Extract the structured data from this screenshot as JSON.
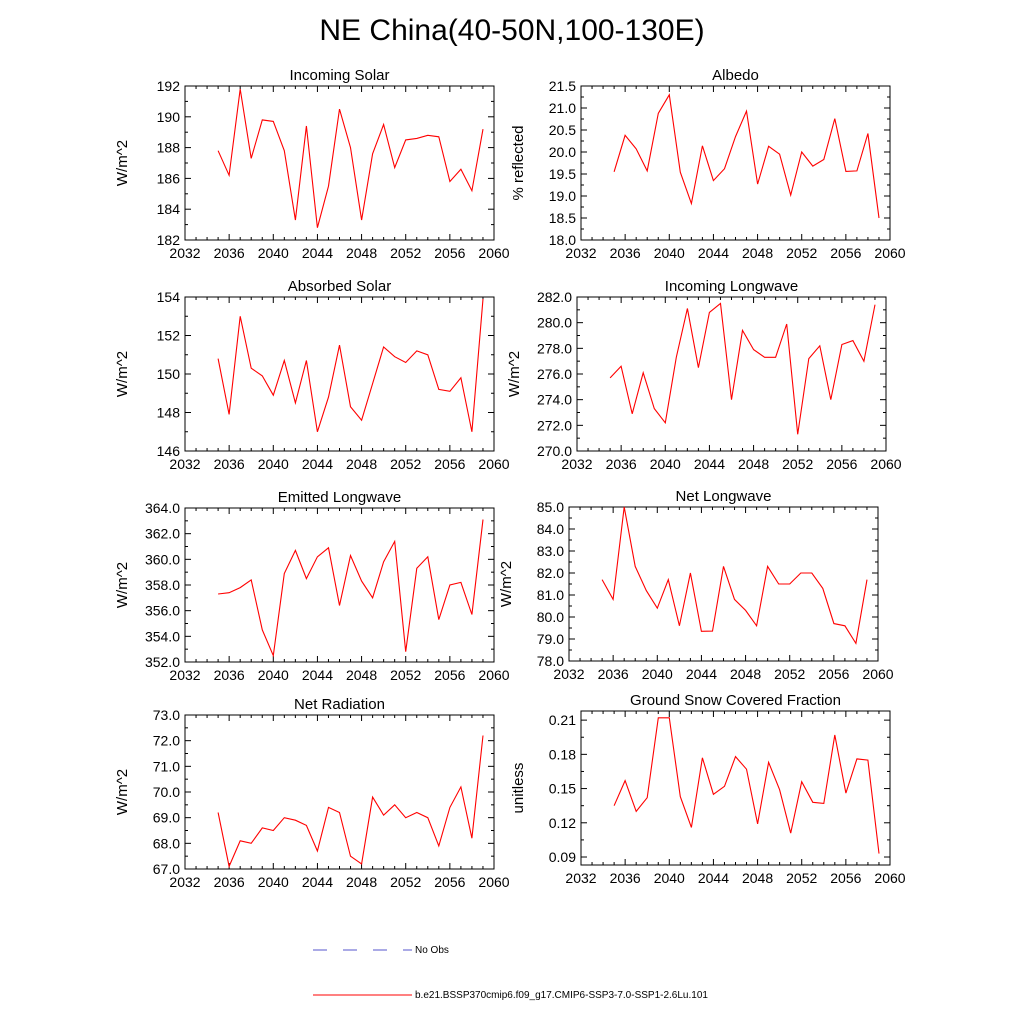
{
  "title": "NE China(40-50N,100-130E)",
  "colors": {
    "model_line": "#ff0000",
    "obs_line": "#5555cc",
    "axis": "#000000"
  },
  "legend": {
    "obs_label": "No Obs",
    "model_label": "b.e21.BSSP370cmip6.f09_g17.CMIP6-SSP3-7.0-SSP1-2.6Lu.101"
  },
  "chart_data": [
    {
      "type": "line",
      "title": "Incoming Solar",
      "ylabel": "W/m^2",
      "xlim": [
        2032,
        2060
      ],
      "xticks": [
        2032,
        2036,
        2040,
        2044,
        2048,
        2052,
        2056,
        2060
      ],
      "ylim": [
        182,
        192
      ],
      "yticks": [
        "182",
        "184",
        "186",
        "188",
        "190",
        "192"
      ],
      "x": [
        2035,
        2036,
        2037,
        2038,
        2039,
        2040,
        2041,
        2042,
        2043,
        2044,
        2045,
        2046,
        2047,
        2048,
        2049,
        2050,
        2051,
        2052,
        2053,
        2054,
        2055,
        2056,
        2057,
        2058,
        2059
      ],
      "values": [
        187.8,
        186.2,
        191.8,
        187.3,
        189.8,
        189.7,
        187.8,
        183.3,
        189.4,
        182.8,
        185.5,
        190.5,
        188.0,
        183.3,
        187.6,
        189.5,
        186.7,
        188.5,
        188.6,
        188.8,
        188.7,
        185.8,
        186.6,
        185.2,
        189.2
      ]
    },
    {
      "type": "line",
      "title": "Albedo",
      "ylabel": "% reflected",
      "xlim": [
        2032,
        2060
      ],
      "xticks": [
        2032,
        2036,
        2040,
        2044,
        2048,
        2052,
        2056,
        2060
      ],
      "ylim": [
        18.0,
        21.5
      ],
      "yticks": [
        "18.0",
        "18.5",
        "19.0",
        "19.5",
        "20.0",
        "20.5",
        "21.0",
        "21.5"
      ],
      "x": [
        2035,
        2036,
        2037,
        2038,
        2039,
        2040,
        2041,
        2042,
        2043,
        2044,
        2045,
        2046,
        2047,
        2048,
        2049,
        2050,
        2051,
        2052,
        2053,
        2054,
        2055,
        2056,
        2057,
        2058,
        2059
      ],
      "values": [
        19.55,
        20.38,
        20.07,
        19.57,
        20.88,
        21.3,
        19.54,
        18.83,
        20.14,
        19.35,
        19.62,
        20.35,
        20.93,
        19.27,
        20.13,
        19.95,
        19.02,
        20.0,
        19.68,
        19.83,
        20.76,
        19.56,
        19.57,
        20.42,
        18.5
      ]
    },
    {
      "type": "line",
      "title": "Absorbed Solar",
      "ylabel": "W/m^2",
      "xlim": [
        2032,
        2060
      ],
      "xticks": [
        2032,
        2036,
        2040,
        2044,
        2048,
        2052,
        2056,
        2060
      ],
      "ylim": [
        146,
        154
      ],
      "yticks": [
        "146",
        "148",
        "150",
        "152",
        "154"
      ],
      "x": [
        2035,
        2036,
        2037,
        2038,
        2039,
        2040,
        2041,
        2042,
        2043,
        2044,
        2045,
        2046,
        2047,
        2048,
        2049,
        2050,
        2051,
        2052,
        2053,
        2054,
        2055,
        2056,
        2057,
        2058,
        2059
      ],
      "values": [
        150.8,
        147.9,
        153.0,
        150.3,
        149.9,
        148.9,
        150.7,
        148.5,
        150.7,
        147.0,
        148.8,
        151.5,
        148.3,
        147.6,
        149.5,
        151.4,
        150.9,
        150.6,
        151.2,
        151.0,
        149.2,
        149.1,
        149.8,
        147.0,
        153.9
      ]
    },
    {
      "type": "line",
      "title": "Incoming Longwave",
      "ylabel": "W/m^2",
      "xlim": [
        2032,
        2060
      ],
      "xticks": [
        2032,
        2036,
        2040,
        2044,
        2048,
        2052,
        2056,
        2060
      ],
      "ylim": [
        270.0,
        282.0
      ],
      "yticks": [
        "270.0",
        "272.0",
        "274.0",
        "276.0",
        "278.0",
        "280.0",
        "282.0"
      ],
      "x": [
        2035,
        2036,
        2037,
        2038,
        2039,
        2040,
        2041,
        2042,
        2043,
        2044,
        2045,
        2046,
        2047,
        2048,
        2049,
        2050,
        2051,
        2052,
        2053,
        2054,
        2055,
        2056,
        2057,
        2058,
        2059
      ],
      "values": [
        275.7,
        276.6,
        272.9,
        276.1,
        273.3,
        272.2,
        277.3,
        281.1,
        276.5,
        280.8,
        281.5,
        274.0,
        279.4,
        277.9,
        277.3,
        277.3,
        279.9,
        271.3,
        277.2,
        278.2,
        274.0,
        278.3,
        278.6,
        277.0,
        281.4
      ]
    },
    {
      "type": "line",
      "title": "Emitted Longwave",
      "ylabel": "W/m^2",
      "xlim": [
        2032,
        2060
      ],
      "xticks": [
        2032,
        2036,
        2040,
        2044,
        2048,
        2052,
        2056,
        2060
      ],
      "ylim": [
        352.0,
        364.0
      ],
      "yticks": [
        "352.0",
        "354.0",
        "356.0",
        "358.0",
        "360.0",
        "362.0",
        "364.0"
      ],
      "x": [
        2035,
        2036,
        2037,
        2038,
        2039,
        2040,
        2041,
        2042,
        2043,
        2044,
        2045,
        2046,
        2047,
        2048,
        2049,
        2050,
        2051,
        2052,
        2053,
        2054,
        2055,
        2056,
        2057,
        2058,
        2059
      ],
      "values": [
        357.3,
        357.4,
        357.8,
        358.4,
        354.5,
        352.5,
        358.9,
        360.7,
        358.5,
        360.2,
        360.9,
        356.4,
        360.3,
        358.3,
        357.0,
        359.8,
        361.4,
        352.8,
        359.3,
        360.2,
        355.3,
        358.0,
        358.2,
        355.7,
        363.1
      ]
    },
    {
      "type": "line",
      "title": "Net Longwave",
      "ylabel": "W/m^2",
      "xlim": [
        2032,
        2060
      ],
      "xticks": [
        2032,
        2036,
        2040,
        2044,
        2048,
        2052,
        2056,
        2060
      ],
      "ylim": [
        78.0,
        85.0
      ],
      "yticks": [
        "78.0",
        "79.0",
        "80.0",
        "81.0",
        "82.0",
        "83.0",
        "84.0",
        "85.0"
      ],
      "x": [
        2035,
        2036,
        2037,
        2038,
        2039,
        2040,
        2041,
        2042,
        2043,
        2044,
        2045,
        2046,
        2047,
        2048,
        2049,
        2050,
        2051,
        2052,
        2053,
        2054,
        2055,
        2056,
        2057,
        2058,
        2059
      ],
      "values": [
        81.7,
        80.8,
        85.0,
        82.3,
        81.2,
        80.4,
        81.7,
        79.6,
        82.0,
        79.35,
        79.36,
        82.3,
        80.8,
        80.3,
        79.6,
        82.3,
        81.5,
        81.5,
        82.0,
        82.0,
        81.3,
        79.7,
        79.6,
        78.8,
        81.7
      ]
    },
    {
      "type": "line",
      "title": "Net Radiation",
      "ylabel": "W/m^2",
      "xlim": [
        2032,
        2060
      ],
      "xticks": [
        2032,
        2036,
        2040,
        2044,
        2048,
        2052,
        2056,
        2060
      ],
      "ylim": [
        67.0,
        73.0
      ],
      "yticks": [
        "67.0",
        "68.0",
        "69.0",
        "70.0",
        "71.0",
        "72.0",
        "73.0"
      ],
      "x": [
        2035,
        2036,
        2037,
        2038,
        2039,
        2040,
        2041,
        2042,
        2043,
        2044,
        2045,
        2046,
        2047,
        2048,
        2049,
        2050,
        2051,
        2052,
        2053,
        2054,
        2055,
        2056,
        2057,
        2058,
        2059
      ],
      "values": [
        69.2,
        67.1,
        68.1,
        68.0,
        68.6,
        68.5,
        69.0,
        68.9,
        68.7,
        67.7,
        69.4,
        69.2,
        67.5,
        67.2,
        69.8,
        69.1,
        69.5,
        69.0,
        69.2,
        69.0,
        67.9,
        69.4,
        70.2,
        68.2,
        72.2
      ]
    },
    {
      "type": "line",
      "title": "Ground Snow Covered Fraction",
      "ylabel": "unitless",
      "xlim": [
        2032,
        2060
      ],
      "xticks": [
        2032,
        2036,
        2040,
        2044,
        2048,
        2052,
        2056,
        2060
      ],
      "ylim": [
        0.083,
        0.218
      ],
      "yticks": [
        "0.09",
        "0.12",
        "0.15",
        "0.18",
        "0.21"
      ],
      "ytick_values": [
        0.09,
        0.12,
        0.15,
        0.18,
        0.21
      ],
      "x": [
        2035,
        2036,
        2037,
        2038,
        2039,
        2040,
        2041,
        2042,
        2043,
        2044,
        2045,
        2046,
        2047,
        2048,
        2049,
        2050,
        2051,
        2052,
        2053,
        2054,
        2055,
        2056,
        2057,
        2058,
        2059
      ],
      "values": [
        0.135,
        0.157,
        0.13,
        0.142,
        0.212,
        0.212,
        0.143,
        0.116,
        0.177,
        0.145,
        0.152,
        0.178,
        0.167,
        0.119,
        0.173,
        0.149,
        0.111,
        0.156,
        0.138,
        0.137,
        0.197,
        0.146,
        0.176,
        0.175,
        0.093
      ]
    }
  ]
}
